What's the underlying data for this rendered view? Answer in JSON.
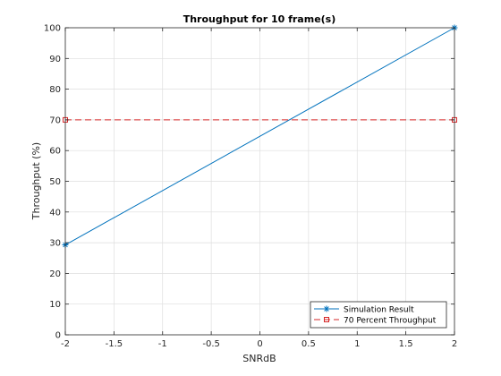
{
  "chart_data": {
    "type": "line",
    "title": "Throughput for 10 frame(s)",
    "xlabel": "SNRdB",
    "ylabel": "Throughput (%)",
    "xlim": [
      -2,
      2
    ],
    "ylim": [
      0,
      100
    ],
    "xticks": [
      -2,
      -1.5,
      -1,
      -0.5,
      0,
      0.5,
      1,
      1.5,
      2
    ],
    "xtick_labels": [
      "-2",
      "-1.5",
      "-1",
      "-0.5",
      "0",
      "0.5",
      "1",
      "1.5",
      "2"
    ],
    "yticks": [
      0,
      10,
      20,
      30,
      40,
      50,
      60,
      70,
      80,
      90,
      100
    ],
    "ytick_labels": [
      "0",
      "10",
      "20",
      "30",
      "40",
      "50",
      "60",
      "70",
      "80",
      "90",
      "100"
    ],
    "grid": true,
    "legend_location": "bottom-right",
    "series": [
      {
        "name": "Simulation Result",
        "x": [
          -2,
          2
        ],
        "y": [
          29.3,
          100
        ],
        "color": "#0072bd",
        "line_style": "solid",
        "marker": "asterisk"
      },
      {
        "name": "70 Percent Throughput",
        "x": [
          -2,
          2
        ],
        "y": [
          70,
          70
        ],
        "color": "#d62728",
        "line_style": "dashed",
        "marker": "square"
      }
    ]
  }
}
